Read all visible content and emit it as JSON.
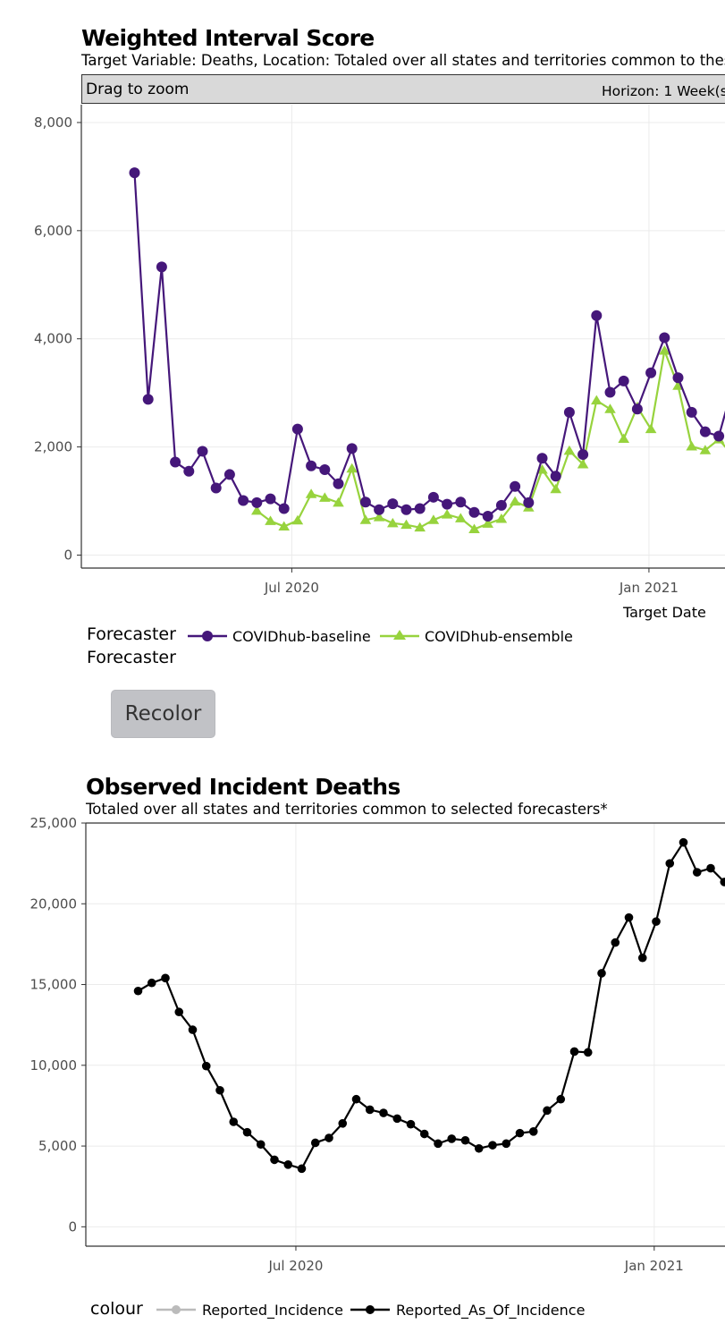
{
  "wis": {
    "title": "Weighted Interval Score",
    "subtitle": "Target Variable: Deaths, Location: Totaled over all states and territories common to these",
    "zoom_hint": "Drag to zoom",
    "facet_label": "Horizon: 1 Week(s",
    "legend_title_1": "Forecaster",
    "legend_title_2": "Forecaster",
    "recolor_label": "Recolor"
  },
  "observed": {
    "title": "Observed Incident Deaths",
    "subtitle": "Totaled over all states and territories common to selected forecasters*",
    "legend_title": "colour"
  },
  "colors": {
    "baseline": "#45177a",
    "ensemble": "#97d33d",
    "reported": "#bbbbbb",
    "as_of": "#000000"
  },
  "chart_data": [
    {
      "type": "line",
      "title": "Weighted Interval Score",
      "xlabel": "Target Date",
      "ylabel": "",
      "x_start": "2020-04-11",
      "x_step_days": 7,
      "x_ticks": [
        "Jul 2020",
        "Jan 2021"
      ],
      "x_tick_dates": [
        "2020-07-01",
        "2021-01-01"
      ],
      "y_ticks": [
        0,
        2000,
        4000,
        6000,
        8000
      ],
      "y_tick_labels": [
        "0",
        "2,000",
        "4,000",
        "6,000",
        "8,000"
      ],
      "ylim": [
        -240,
        8330
      ],
      "grid": true,
      "series": [
        {
          "name": "COVIDhub-baseline",
          "marker": "circle",
          "color": "#45177a",
          "start_index": 0,
          "values": [
            7070,
            2880,
            5330,
            1720,
            1550,
            1920,
            1240,
            1490,
            1010,
            970,
            1040,
            860,
            2330,
            1650,
            1580,
            1320,
            1970,
            980,
            840,
            950,
            840,
            860,
            1070,
            940,
            980,
            790,
            720,
            920,
            1270,
            970,
            1790,
            1460,
            2640,
            1860,
            4430,
            3010,
            3220,
            2700,
            3370,
            4020,
            3280,
            2640,
            2280,
            2200,
            3100
          ]
        },
        {
          "name": "COVIDhub-ensemble",
          "marker": "triangle",
          "color": "#97d33d",
          "start_index": 9,
          "values": [
            820,
            630,
            530,
            640,
            1130,
            1060,
            970,
            1600,
            650,
            700,
            590,
            560,
            510,
            650,
            750,
            680,
            480,
            580,
            670,
            990,
            880,
            1580,
            1220,
            1930,
            1680,
            2860,
            2700,
            2150,
            2740,
            2330,
            3780,
            3130,
            2010,
            1940,
            2140,
            1850
          ]
        }
      ]
    },
    {
      "type": "line",
      "title": "Observed Incident Deaths",
      "xlabel": "",
      "ylabel": "",
      "x_start": "2020-04-11",
      "x_step_days": 7,
      "x_ticks": [
        "Jul 2020",
        "Jan 2021"
      ],
      "x_tick_dates": [
        "2020-07-01",
        "2021-01-01"
      ],
      "y_ticks": [
        0,
        5000,
        10000,
        15000,
        20000,
        25000
      ],
      "y_tick_labels": [
        "0",
        "5,000",
        "10,000",
        "15,000",
        "20,000",
        "25,000"
      ],
      "ylim": [
        -1200,
        25000
      ],
      "grid": true,
      "series": [
        {
          "name": "Reported_Incidence",
          "marker": "circle",
          "color": "#bbbbbb",
          "values": []
        },
        {
          "name": "Reported_As_Of_Incidence",
          "marker": "circle",
          "color": "#000000",
          "values": [
            14600,
            15100,
            15400,
            13300,
            12200,
            9950,
            8450,
            6500,
            5850,
            5100,
            4150,
            3850,
            3600,
            5200,
            5500,
            6400,
            7900,
            7250,
            7050,
            6700,
            6350,
            5750,
            5150,
            5450,
            5350,
            4850,
            5050,
            5150,
            5800,
            5900,
            7200,
            7900,
            10850,
            10800,
            15700,
            17600,
            19150,
            16650,
            18900,
            22500,
            23800,
            21950,
            22200,
            21350,
            20000
          ]
        }
      ]
    }
  ]
}
